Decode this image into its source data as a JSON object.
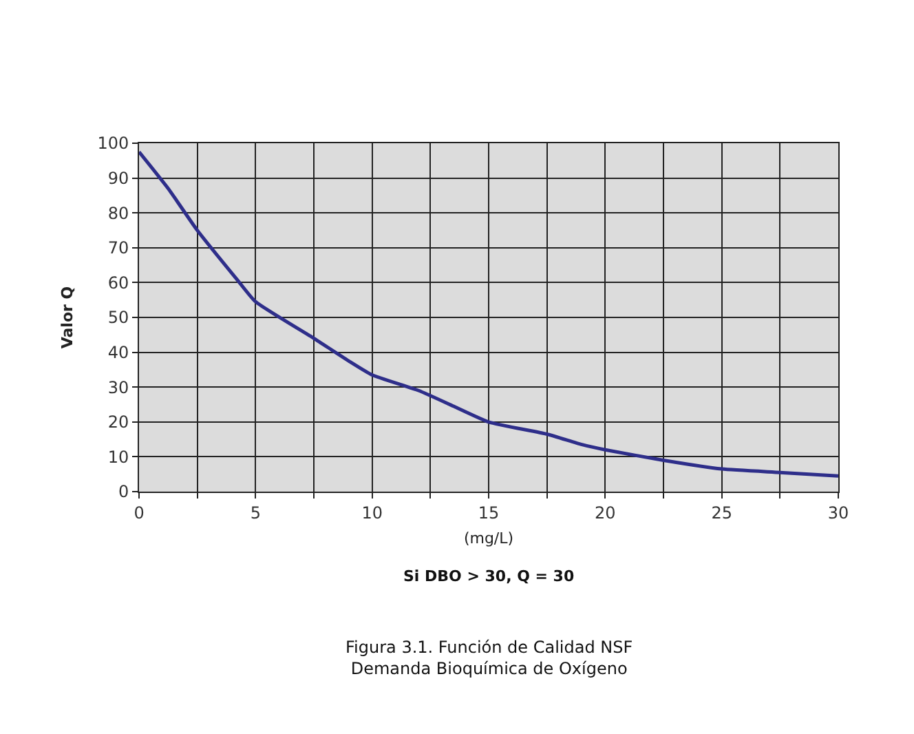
{
  "chart_data": {
    "type": "line",
    "ylabel": "Valor Q",
    "xlabel": "(mg/L)",
    "annotations": [
      "Si DBO > 30, Q = 30",
      "Figura 3.1. Función de Calidad NSF\nDemanda Bioquímica de Oxígeno"
    ],
    "x": [
      0,
      1.25,
      2.5,
      4.25,
      5,
      7.5,
      9,
      10,
      12,
      13.5,
      15,
      17.5,
      19,
      20,
      22.5,
      25,
      27.5,
      30
    ],
    "series": [
      {
        "color": "#2e2e8a",
        "values": [
          97.5,
          87,
          75,
          60.5,
          54.5,
          44,
          37.5,
          33.5,
          29,
          24.5,
          20,
          16.5,
          13.5,
          12,
          9,
          6.5,
          5.5,
          4.5
        ]
      }
    ],
    "xlim": [
      0,
      30
    ],
    "ylim": [
      0,
      100
    ],
    "xticks": [
      0,
      {
        "value": 2.5,
        "label": null
      },
      5,
      {
        "value": 7.5,
        "label": null
      },
      10,
      {
        "value": 12.5,
        "label": null
      },
      15,
      {
        "value": 17.5,
        "label": null
      },
      20,
      {
        "value": 22.5,
        "label": null
      },
      25,
      {
        "value": 27.5,
        "label": null
      },
      30
    ],
    "yticks": [
      0,
      10,
      20,
      30,
      40,
      50,
      60,
      70,
      80,
      90,
      100
    ],
    "grid": true,
    "marker": "none",
    "line_style": "solid"
  }
}
